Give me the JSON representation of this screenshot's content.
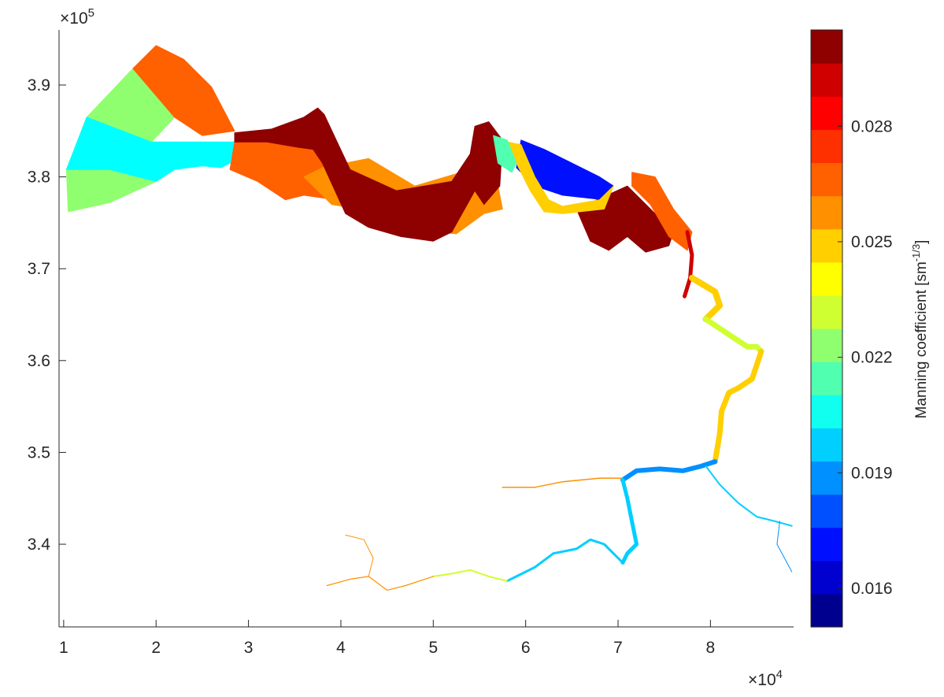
{
  "chart_data": {
    "type": "heatmap",
    "title": "",
    "xlabel": "",
    "ylabel": "",
    "x_multiplier": "×10",
    "x_multiplier_exp": "4",
    "y_multiplier": "×10",
    "y_multiplier_exp": "5",
    "xlim": [
      0.95,
      8.9
    ],
    "ylim": [
      3.31,
      3.96
    ],
    "xticks": [
      {
        "value": 1,
        "label": "1"
      },
      {
        "value": 2,
        "label": "2"
      },
      {
        "value": 3,
        "label": "3"
      },
      {
        "value": 4,
        "label": "4"
      },
      {
        "value": 5,
        "label": "5"
      },
      {
        "value": 6,
        "label": "6"
      },
      {
        "value": 7,
        "label": "7"
      },
      {
        "value": 8,
        "label": "8"
      }
    ],
    "yticks": [
      {
        "value": 3.4,
        "label": "3.4"
      },
      {
        "value": 3.5,
        "label": "3.5"
      },
      {
        "value": 3.6,
        "label": "3.6"
      },
      {
        "value": 3.7,
        "label": "3.7"
      },
      {
        "value": 3.8,
        "label": "3.8"
      },
      {
        "value": 3.9,
        "label": "3.9"
      }
    ],
    "colorbar": {
      "label": "Manning coefficient [sm",
      "label_exp": "-1/3",
      "label_tail": "]",
      "clim": [
        0.015,
        0.0305
      ],
      "ticks": [
        {
          "value": 0.016,
          "label": "0.016"
        },
        {
          "value": 0.019,
          "label": "0.019"
        },
        {
          "value": 0.022,
          "label": "0.022"
        },
        {
          "value": 0.025,
          "label": "0.025"
        },
        {
          "value": 0.028,
          "label": "0.028"
        }
      ],
      "colors": [
        "#00008f",
        "#0000cf",
        "#0010ff",
        "#0050ff",
        "#0090ff",
        "#00cfff",
        "#10ffef",
        "#50ffaf",
        "#90ff6f",
        "#cfff30",
        "#ffff00",
        "#ffcf00",
        "#ff9000",
        "#ff6000",
        "#ff3000",
        "#ff0000",
        "#cf0000",
        "#8f0000"
      ]
    },
    "regions": [
      {
        "name": "estuary-mouth-north",
        "value": 0.0232,
        "color": "#90ff6f",
        "x": [
          1.03,
          1.25,
          1.75,
          2.2,
          1.95,
          1.25,
          1.03
        ],
        "y": [
          3.808,
          3.865,
          3.918,
          3.865,
          3.838,
          3.838,
          3.808
        ]
      },
      {
        "name": "estuary-mouth-far-north",
        "value": 0.0265,
        "color": "#ff6000",
        "x": [
          1.75,
          2.0,
          2.3,
          2.6,
          2.85,
          2.5,
          2.2
        ],
        "y": [
          3.918,
          3.943,
          3.928,
          3.898,
          3.85,
          3.845,
          3.865
        ]
      },
      {
        "name": "estuary-mouth-south",
        "value": 0.0232,
        "color": "#90ff6f",
        "x": [
          1.03,
          1.05,
          1.5,
          2.0,
          2.2,
          1.5,
          1.03
        ],
        "y": [
          3.808,
          3.762,
          3.772,
          3.795,
          3.808,
          3.808,
          3.808
        ]
      },
      {
        "name": "estuary-mouth-center",
        "value": 0.0205,
        "color": "#00ffff",
        "x": [
          1.03,
          1.25,
          1.95,
          2.85,
          2.8,
          2.7,
          2.5,
          2.2,
          2.0,
          1.5,
          1.03
        ],
        "y": [
          3.808,
          3.865,
          3.838,
          3.838,
          3.815,
          3.81,
          3.812,
          3.808,
          3.795,
          3.808,
          3.808
        ]
      },
      {
        "name": "outer-reach",
        "value": 0.0265,
        "color": "#ff6000",
        "x": [
          2.85,
          3.2,
          3.9,
          3.95,
          3.6,
          3.4,
          3.1,
          2.8
        ],
        "y": [
          3.838,
          3.838,
          3.835,
          3.775,
          3.78,
          3.775,
          3.795,
          3.808
        ]
      },
      {
        "name": "middle-reach-banks",
        "value": 0.026,
        "color": "#ff9000",
        "x": [
          3.8,
          4.3,
          4.8,
          5.3,
          5.7,
          5.75,
          5.55,
          5.25,
          5.0,
          4.6,
          4.2,
          3.9,
          3.6
        ],
        "y": [
          3.81,
          3.82,
          3.79,
          3.805,
          3.79,
          3.765,
          3.76,
          3.738,
          3.74,
          3.745,
          3.765,
          3.77,
          3.8
        ]
      },
      {
        "name": "main-channel",
        "value": 0.0298,
        "color": "#8f0000",
        "x": [
          2.85,
          3.25,
          3.6,
          3.75,
          3.82,
          3.95,
          4.1,
          4.6,
          5.2,
          5.4,
          5.45,
          5.6,
          5.75,
          5.72,
          5.55,
          5.45,
          5.2,
          5.0,
          4.65,
          4.3,
          4.05,
          3.8,
          3.7,
          3.55,
          3.2,
          2.85
        ],
        "y": [
          3.848,
          3.852,
          3.865,
          3.875,
          3.868,
          3.84,
          3.808,
          3.785,
          3.795,
          3.825,
          3.855,
          3.86,
          3.84,
          3.79,
          3.77,
          3.785,
          3.74,
          3.73,
          3.735,
          3.745,
          3.76,
          3.815,
          3.83,
          3.832,
          3.838,
          3.838
        ]
      },
      {
        "name": "upper-bend-south",
        "value": 0.0298,
        "color": "#8f0000",
        "x": [
          6.55,
          7.1,
          7.4,
          7.6,
          7.55,
          7.3,
          7.1,
          6.9,
          6.7,
          6.55
        ],
        "y": [
          3.765,
          3.79,
          3.76,
          3.74,
          3.725,
          3.718,
          3.735,
          3.72,
          3.73,
          3.765
        ]
      },
      {
        "name": "upper-bend-east",
        "value": 0.0265,
        "color": "#ff6000",
        "x": [
          7.15,
          7.4,
          7.6,
          7.8,
          7.75,
          7.55,
          7.35,
          7.15
        ],
        "y": [
          3.805,
          3.8,
          3.765,
          3.74,
          3.72,
          3.735,
          3.77,
          3.79
        ]
      },
      {
        "name": "inner-basin",
        "value": 0.0172,
        "color": "#0010ff",
        "x": [
          5.95,
          6.2,
          6.5,
          6.8,
          6.95,
          6.85,
          6.4,
          6.1,
          5.9
        ],
        "y": [
          3.84,
          3.83,
          3.815,
          3.8,
          3.79,
          3.775,
          3.78,
          3.79,
          3.81
        ]
      },
      {
        "name": "inner-channel",
        "value": 0.025,
        "color": "#ffcf00",
        "x": [
          5.8,
          5.95,
          6.1,
          6.25,
          6.4,
          6.8,
          6.95,
          6.85,
          6.4,
          6.2,
          6.05,
          5.9,
          5.75
        ],
        "y": [
          3.838,
          3.835,
          3.8,
          3.775,
          3.768,
          3.775,
          3.79,
          3.765,
          3.76,
          3.762,
          3.785,
          3.815,
          3.825
        ]
      },
      {
        "name": "bend-transition",
        "value": 0.0215,
        "color": "#50ffaf",
        "x": [
          5.65,
          5.8,
          5.9,
          5.85,
          5.7
        ],
        "y": [
          3.845,
          3.84,
          3.815,
          3.805,
          3.815
        ]
      }
    ],
    "channels": [
      {
        "name": "upper-reach",
        "value": 0.0288,
        "color": "#cf0000",
        "width": 5,
        "x": [
          7.75,
          7.8,
          7.78,
          7.72
        ],
        "y": [
          3.74,
          3.715,
          3.69,
          3.67
        ]
      },
      {
        "name": "tidal-river-1",
        "value": 0.0255,
        "color": "#ffcf00",
        "width": 8,
        "x": [
          7.8,
          8.05,
          8.1,
          7.95
        ],
        "y": [
          3.69,
          3.675,
          3.66,
          3.645
        ]
      },
      {
        "name": "tidal-river-2",
        "value": 0.0238,
        "color": "#cfff30",
        "width": 7,
        "x": [
          7.95,
          8.1,
          8.25,
          8.4,
          8.5,
          8.55
        ],
        "y": [
          3.645,
          3.635,
          3.625,
          3.615,
          3.615,
          3.61
        ]
      },
      {
        "name": "tidal-river-3",
        "value": 0.0252,
        "color": "#ffcf00",
        "width": 7,
        "x": [
          8.55,
          8.45,
          8.3,
          8.2,
          8.12,
          8.1,
          8.05
        ],
        "y": [
          3.61,
          3.58,
          3.57,
          3.565,
          3.545,
          3.52,
          3.49
        ]
      },
      {
        "name": "tidal-river-4",
        "value": 0.0185,
        "color": "#0090ff",
        "width": 6,
        "x": [
          8.05,
          7.9,
          7.7,
          7.45,
          7.2,
          7.05
        ],
        "y": [
          3.49,
          3.485,
          3.48,
          3.482,
          3.48,
          3.47
        ]
      },
      {
        "name": "tributary-east",
        "value": 0.0205,
        "color": "#00cfff",
        "width": 2,
        "x": [
          7.95,
          8.1,
          8.3,
          8.5,
          8.7,
          8.88
        ],
        "y": [
          3.485,
          3.465,
          3.445,
          3.43,
          3.425,
          3.42
        ]
      },
      {
        "name": "tributary-east-2",
        "value": 0.0195,
        "color": "#0090ff",
        "width": 1,
        "x": [
          8.75,
          8.72,
          8.8,
          8.88
        ],
        "y": [
          3.425,
          3.4,
          3.385,
          3.37
        ]
      },
      {
        "name": "tributary-north",
        "value": 0.0255,
        "color": "#ff9000",
        "width": 1.5,
        "x": [
          5.75,
          6.1,
          6.4,
          6.8,
          7.05
        ],
        "y": [
          3.462,
          3.462,
          3.468,
          3.472,
          3.472
        ]
      },
      {
        "name": "upper-river-1",
        "value": 0.0205,
        "color": "#00cfff",
        "width": 5,
        "x": [
          7.05,
          7.1,
          7.15,
          7.2,
          7.1,
          7.05
        ],
        "y": [
          3.47,
          3.45,
          3.425,
          3.4,
          3.39,
          3.38
        ]
      },
      {
        "name": "upper-river-2",
        "value": 0.0205,
        "color": "#00cfff",
        "width": 3,
        "x": [
          7.05,
          6.85,
          6.7,
          6.55,
          6.3,
          6.1,
          5.9,
          5.8
        ],
        "y": [
          3.38,
          3.4,
          3.405,
          3.395,
          3.39,
          3.375,
          3.365,
          3.36
        ]
      },
      {
        "name": "upper-river-3",
        "value": 0.0235,
        "color": "#cfff30",
        "width": 2,
        "x": [
          5.8,
          5.6,
          5.4,
          5.2,
          5.0
        ],
        "y": [
          3.36,
          3.365,
          3.372,
          3.368,
          3.365
        ]
      },
      {
        "name": "upper-river-4",
        "value": 0.026,
        "color": "#ff9000",
        "width": 1.2,
        "x": [
          5.0,
          4.7,
          4.5,
          4.3,
          4.1,
          3.85
        ],
        "y": [
          3.365,
          3.355,
          3.35,
          3.365,
          3.362,
          3.355
        ]
      },
      {
        "name": "upper-river-5",
        "value": 0.026,
        "color": "#ff9000",
        "width": 1,
        "x": [
          4.3,
          4.35,
          4.25,
          4.05
        ],
        "y": [
          3.365,
          3.385,
          3.405,
          3.41
        ]
      }
    ]
  }
}
